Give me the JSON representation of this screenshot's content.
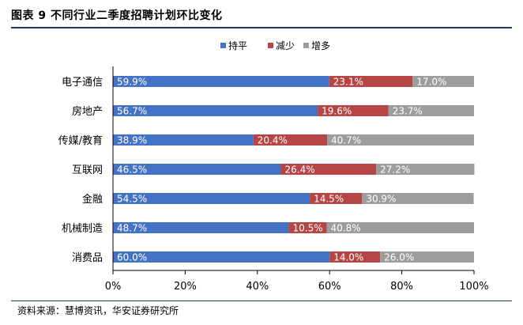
{
  "figure": {
    "title": "图表 9  不同行业二季度招聘计划环比变化",
    "source": "资料来源：慧博资讯，华安证券研究所"
  },
  "colors": {
    "hold": "#4472c4",
    "decrease": "#b64646",
    "increase": "#9d9d9d"
  },
  "chart_data": {
    "type": "bar",
    "orientation": "horizontal",
    "stacked": true,
    "title": "",
    "xlabel": "",
    "ylabel": "",
    "xlim": [
      0,
      100
    ],
    "x_ticks": [
      "0%",
      "20%",
      "40%",
      "60%",
      "80%",
      "100%"
    ],
    "legend_position": "top-center",
    "grid": false,
    "categories": [
      "电子通信",
      "房地产",
      "传媒/教育",
      "互联网",
      "金融",
      "机械制造",
      "消费品"
    ],
    "series": [
      {
        "name": "持平",
        "values": [
          59.9,
          56.7,
          38.9,
          46.5,
          54.5,
          48.7,
          60.0
        ],
        "labels": [
          "59.9%",
          "56.7%",
          "38.9%",
          "46.5%",
          "54.5%",
          "48.7%",
          "60.0%"
        ]
      },
      {
        "name": "减少",
        "values": [
          23.1,
          19.6,
          20.4,
          26.4,
          14.5,
          10.5,
          14.0
        ],
        "labels": [
          "23.1%",
          "19.6%",
          "20.4%",
          "26.4%",
          "14.5%",
          "10.5%",
          "14.0%"
        ]
      },
      {
        "name": "增多",
        "values": [
          17.0,
          23.7,
          40.7,
          27.2,
          30.9,
          40.8,
          26.0
        ],
        "labels": [
          "17.0%",
          "23.7%",
          "40.7%",
          "27.2%",
          "30.9%",
          "40.8%",
          "26.0%"
        ]
      }
    ]
  }
}
